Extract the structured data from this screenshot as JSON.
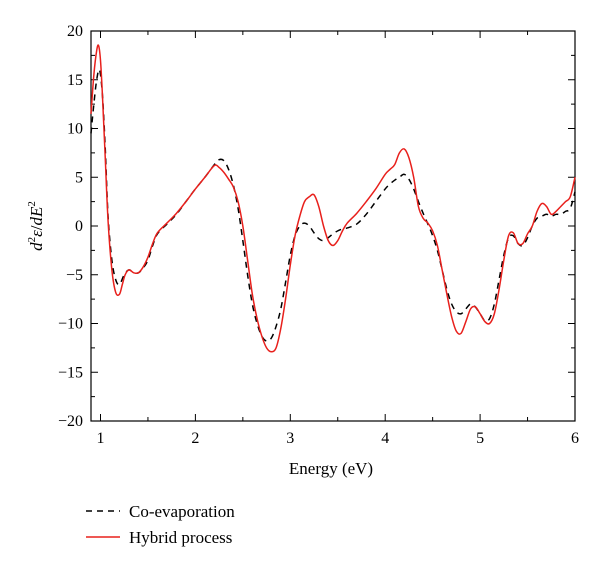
{
  "chart_data": {
    "type": "line",
    "title": "",
    "xlabel": "Energy (eV)",
    "ylabel": {
      "d": "d",
      "sup1": "2",
      "eps": "ε",
      "slash": "/",
      "dE": "dE",
      "sup2": "2"
    },
    "xlim": [
      0.9,
      6
    ],
    "ylim": [
      -20,
      20
    ],
    "x_ticks": [
      1,
      2,
      3,
      4,
      5,
      6
    ],
    "y_ticks": [
      -20,
      -15,
      -10,
      -5,
      0,
      5,
      10,
      15,
      20
    ],
    "grid": false,
    "legend_position": "bottom-left",
    "series": [
      {
        "name": "Co-evaporation",
        "color": "#000000",
        "style": "dashed",
        "x": [
          0.9,
          0.93,
          0.96,
          0.99,
          1.02,
          1.05,
          1.08,
          1.12,
          1.16,
          1.2,
          1.25,
          1.3,
          1.35,
          1.4,
          1.45,
          1.5,
          1.55,
          1.6,
          1.7,
          1.8,
          1.9,
          2.0,
          2.1,
          2.2,
          2.25,
          2.3,
          2.35,
          2.4,
          2.45,
          2.5,
          2.55,
          2.6,
          2.65,
          2.7,
          2.75,
          2.8,
          2.85,
          2.9,
          2.95,
          3.0,
          3.05,
          3.1,
          3.15,
          3.2,
          3.25,
          3.3,
          3.35,
          3.4,
          3.45,
          3.5,
          3.55,
          3.6,
          3.7,
          3.8,
          3.9,
          4.0,
          4.05,
          4.1,
          4.15,
          4.2,
          4.25,
          4.3,
          4.35,
          4.4,
          4.45,
          4.5,
          4.55,
          4.6,
          4.65,
          4.7,
          4.75,
          4.8,
          4.85,
          4.9,
          4.95,
          5.0,
          5.05,
          5.1,
          5.15,
          5.2,
          5.25,
          5.3,
          5.35,
          5.4,
          5.45,
          5.5,
          5.55,
          5.6,
          5.65,
          5.7,
          5.75,
          5.8,
          5.85,
          5.9,
          5.95,
          6.0
        ],
        "y": [
          9.5,
          12.5,
          15.0,
          16.0,
          13.5,
          8.0,
          1.0,
          -3.5,
          -5.5,
          -6.0,
          -5.0,
          -4.5,
          -4.8,
          -4.8,
          -4.3,
          -3.5,
          -2.0,
          -0.8,
          0.2,
          1.2,
          2.5,
          3.8,
          5.0,
          6.3,
          6.8,
          6.7,
          5.8,
          4.2,
          1.8,
          -1.5,
          -5.0,
          -8.0,
          -10.0,
          -11.3,
          -11.8,
          -11.5,
          -10.3,
          -8.5,
          -5.8,
          -3.0,
          -1.0,
          0.0,
          0.3,
          0.0,
          -0.7,
          -1.3,
          -1.5,
          -1.2,
          -0.8,
          -0.5,
          -0.3,
          -0.2,
          0.2,
          1.2,
          2.5,
          3.8,
          4.3,
          4.7,
          5.0,
          5.3,
          4.8,
          3.8,
          2.5,
          1.3,
          0.2,
          -1.0,
          -2.5,
          -4.5,
          -6.5,
          -8.0,
          -8.8,
          -9.0,
          -8.5,
          -8.0,
          -8.3,
          -9.0,
          -9.7,
          -9.5,
          -8.0,
          -5.5,
          -3.0,
          -1.2,
          -1.0,
          -1.8,
          -2.0,
          -1.2,
          0.0,
          0.8,
          1.0,
          1.2,
          1.0,
          1.2,
          1.2,
          1.5,
          1.8,
          3.5
        ]
      },
      {
        "name": "Hybrid process",
        "color": "#e8201c",
        "style": "solid",
        "x": [
          0.9,
          0.93,
          0.96,
          0.98,
          1.0,
          1.02,
          1.05,
          1.08,
          1.12,
          1.16,
          1.2,
          1.23,
          1.26,
          1.3,
          1.35,
          1.4,
          1.45,
          1.5,
          1.55,
          1.6,
          1.7,
          1.8,
          1.9,
          2.0,
          2.1,
          2.2,
          2.25,
          2.3,
          2.35,
          2.4,
          2.45,
          2.5,
          2.55,
          2.6,
          2.65,
          2.7,
          2.75,
          2.8,
          2.85,
          2.9,
          2.95,
          3.0,
          3.05,
          3.1,
          3.15,
          3.2,
          3.25,
          3.3,
          3.35,
          3.4,
          3.45,
          3.5,
          3.55,
          3.6,
          3.7,
          3.8,
          3.9,
          4.0,
          4.05,
          4.1,
          4.15,
          4.2,
          4.25,
          4.3,
          4.35,
          4.4,
          4.45,
          4.5,
          4.55,
          4.6,
          4.65,
          4.7,
          4.75,
          4.8,
          4.85,
          4.9,
          4.95,
          5.0,
          5.05,
          5.1,
          5.15,
          5.2,
          5.25,
          5.3,
          5.35,
          5.4,
          5.45,
          5.5,
          5.55,
          5.6,
          5.65,
          5.7,
          5.75,
          5.8,
          5.85,
          5.9,
          5.95,
          6.0
        ],
        "y": [
          11.5,
          15.5,
          18.0,
          18.5,
          17.0,
          13.5,
          7.0,
          0.5,
          -4.5,
          -6.8,
          -7.0,
          -6.0,
          -5.0,
          -4.5,
          -4.8,
          -4.8,
          -4.2,
          -3.2,
          -1.8,
          -0.7,
          0.3,
          1.3,
          2.5,
          3.8,
          5.0,
          6.2,
          6.0,
          5.5,
          4.8,
          4.0,
          2.5,
          0.0,
          -3.5,
          -7.0,
          -9.5,
          -11.3,
          -12.5,
          -12.9,
          -12.5,
          -10.5,
          -7.5,
          -4.0,
          -1.0,
          1.0,
          2.5,
          3.0,
          3.2,
          2.0,
          0.0,
          -1.5,
          -2.0,
          -1.5,
          -0.5,
          0.3,
          1.3,
          2.5,
          3.8,
          5.3,
          5.8,
          6.3,
          7.5,
          7.9,
          7.0,
          5.0,
          2.0,
          0.8,
          0.3,
          -0.5,
          -2.0,
          -4.5,
          -7.0,
          -9.3,
          -10.8,
          -11.0,
          -9.8,
          -8.5,
          -8.3,
          -9.0,
          -9.8,
          -10.0,
          -9.0,
          -6.5,
          -3.5,
          -1.0,
          -0.7,
          -1.8,
          -1.8,
          -0.8,
          0.0,
          1.5,
          2.3,
          2.0,
          1.2,
          1.5,
          2.0,
          2.5,
          3.0,
          5.0
        ]
      }
    ]
  }
}
